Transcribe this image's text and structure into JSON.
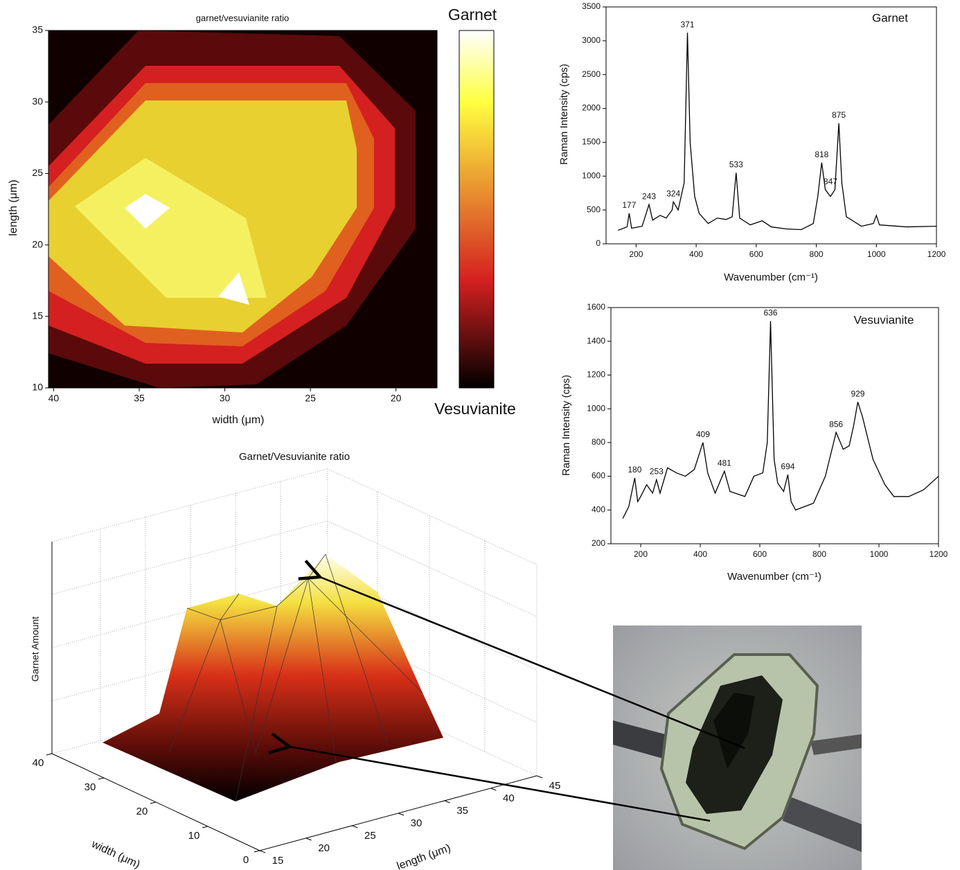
{
  "chart_data": [
    {
      "type": "contour",
      "title": "garnet/vesuvianite ratio",
      "xlabel": "width (μm)",
      "ylabel": "length (μm)",
      "xlim": [
        40.3,
        17.6
      ],
      "ylim": [
        10,
        35
      ],
      "xticks": [
        40,
        35,
        30,
        25,
        20
      ],
      "yticks": [
        10,
        15,
        20,
        25,
        30,
        35
      ],
      "colorbar_top": "Garnet",
      "colorbar_bottom": "Vesuvianite"
    },
    {
      "type": "line",
      "title": "Garnet",
      "xlabel": "Wavenumber (cm⁻¹)",
      "ylabel": "Raman Intensity (cps)",
      "xlim": [
        100,
        1200
      ],
      "ylim": [
        0,
        3500
      ],
      "xticks": [
        200,
        400,
        600,
        800,
        1000,
        1200
      ],
      "yticks": [
        0,
        500,
        1000,
        1500,
        2000,
        2500,
        3000,
        3500
      ],
      "color": "#000000",
      "x": [
        140,
        170,
        177,
        185,
        220,
        243,
        255,
        280,
        300,
        320,
        324,
        340,
        360,
        371,
        380,
        395,
        410,
        440,
        470,
        500,
        520,
        533,
        545,
        580,
        620,
        650,
        700,
        750,
        790,
        805,
        818,
        830,
        847,
        862,
        875,
        885,
        900,
        950,
        990,
        1000,
        1010,
        1100,
        1200
      ],
      "values": [
        200,
        250,
        450,
        230,
        260,
        580,
        350,
        420,
        380,
        500,
        620,
        500,
        900,
        3120,
        1500,
        700,
        450,
        300,
        380,
        360,
        400,
        1050,
        380,
        280,
        340,
        250,
        220,
        210,
        300,
        700,
        1200,
        800,
        700,
        800,
        1780,
        900,
        400,
        260,
        300,
        420,
        280,
        250,
        260
      ],
      "peak_labels": [
        177,
        243,
        324,
        371,
        533,
        818,
        847,
        875
      ]
    },
    {
      "type": "line",
      "title": "Vesuvianite",
      "xlabel": "Wavenumber (cm⁻¹)",
      "ylabel": "Raman Intensity (cps)",
      "xlim": [
        100,
        1200
      ],
      "ylim": [
        200,
        1600
      ],
      "xticks": [
        200,
        400,
        600,
        800,
        1000,
        1200
      ],
      "yticks": [
        200,
        400,
        600,
        800,
        1000,
        1200,
        1400,
        1600
      ],
      "color": "#000000",
      "x": [
        140,
        160,
        180,
        190,
        200,
        220,
        240,
        253,
        265,
        290,
        320,
        350,
        380,
        409,
        425,
        450,
        481,
        500,
        550,
        580,
        610,
        625,
        636,
        648,
        660,
        680,
        694,
        705,
        720,
        780,
        820,
        845,
        856,
        880,
        900,
        915,
        929,
        945,
        980,
        1020,
        1050,
        1100,
        1150,
        1200
      ],
      "values": [
        350,
        420,
        590,
        450,
        480,
        550,
        500,
        580,
        500,
        650,
        620,
        600,
        640,
        800,
        620,
        500,
        630,
        510,
        480,
        600,
        620,
        800,
        1520,
        700,
        560,
        510,
        610,
        450,
        400,
        440,
        600,
        780,
        860,
        760,
        780,
        900,
        1040,
        950,
        700,
        550,
        480,
        480,
        520,
        600
      ],
      "peak_labels": [
        180,
        253,
        409,
        481,
        636,
        694,
        856,
        929
      ]
    },
    {
      "type": "surface",
      "title": "Garnet/Vesuvianite ratio",
      "xlabel": "width (μm)",
      "ylabel": "length (μm)",
      "zlabel": "Garnet Amount",
      "xlim": [
        0,
        40
      ],
      "ylim": [
        15,
        45
      ],
      "xticks": [
        0,
        10,
        20,
        30,
        40
      ],
      "yticks": [
        15,
        20,
        25,
        30,
        35,
        40,
        45
      ]
    }
  ]
}
